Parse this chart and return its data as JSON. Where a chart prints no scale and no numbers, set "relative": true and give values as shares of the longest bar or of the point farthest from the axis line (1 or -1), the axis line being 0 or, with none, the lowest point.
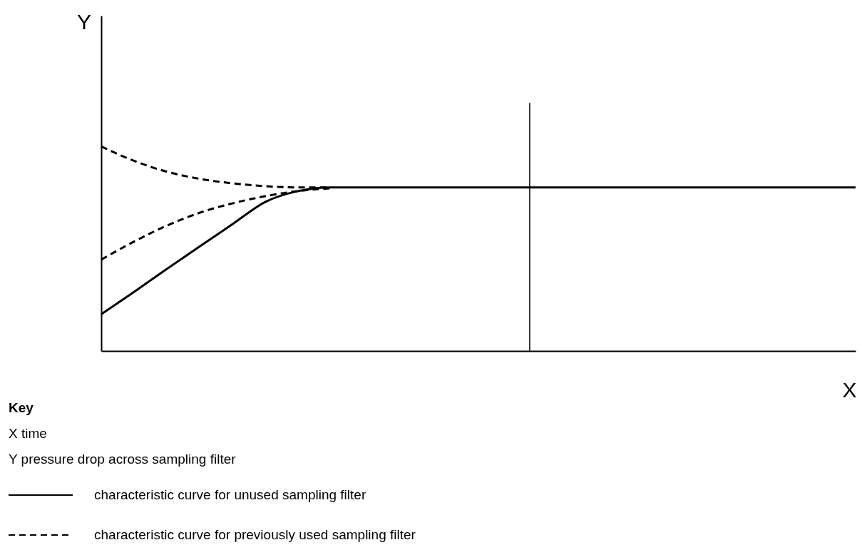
{
  "chart_data": {
    "type": "line",
    "relative": true,
    "xlabel": "X",
    "tick_labels": false,
    "grid": false,
    "legend": "bottom",
    "categories": [
      null,
      null,
      null,
      null,
      null,
      null,
      null,
      null,
      null,
      null,
      null,
      null,
      null,
      null,
      null,
      null,
      null,
      null,
      null,
      null,
      null,
      null,
      null,
      null
    ],
    "series": [
      {
        "name": "characteristic curve for unused sampling filter",
        "color": "#000000",
        "line_style": "solid",
        "values": [
          0.18,
          0.289,
          0.401,
          0.511,
          0.62,
          0.729,
          0.782,
          0.8,
          0.8,
          0.8,
          0.8,
          0.8,
          0.8,
          0.8,
          0.8,
          0.8,
          0.8,
          0.8,
          0.8,
          0.8,
          0.8,
          0.8,
          0.8,
          0.8
        ]
      },
      {
        "name": "characteristic curve for previously used sampling filter",
        "color": "#000000",
        "line_style": "dashed",
        "values": [
          1,
          0.93,
          0.877,
          0.842,
          0.82,
          0.806,
          0.8,
          0.8,
          null,
          null,
          null,
          null,
          null,
          null,
          null,
          null,
          null,
          null,
          null,
          null,
          null,
          null,
          null,
          null
        ]
      },
      {
        "color": "#000000",
        "line_style": "dashed",
        "values": [
          0.447,
          0.535,
          0.613,
          0.676,
          0.722,
          0.757,
          0.782,
          0.796,
          null,
          null,
          null,
          null,
          null,
          null,
          null,
          null,
          null,
          null,
          null,
          null,
          null,
          null,
          null,
          null
        ]
      }
    ],
    "annotations": [
      "Y",
      "Key",
      "X    time",
      "Y    pressure drop across sampling filter"
    ]
  }
}
